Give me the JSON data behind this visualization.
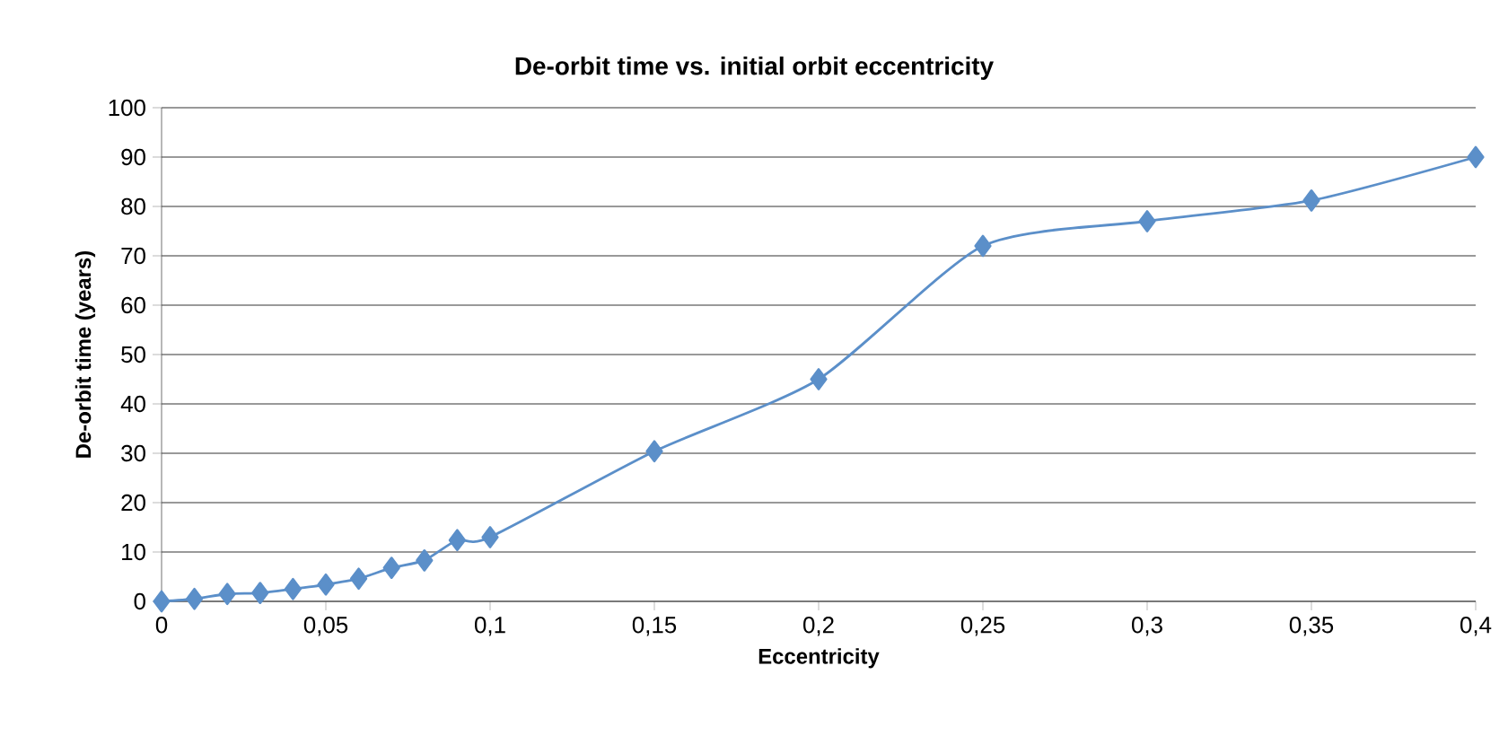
{
  "chart_data": {
    "type": "line",
    "title": "De-orbit time vs. initial orbit eccentricity",
    "xlabel": "Eccentricity",
    "ylabel": "De-orbit time (years)",
    "x": [
      0,
      0.01,
      0.02,
      0.03,
      0.04,
      0.05,
      0.06,
      0.07,
      0.08,
      0.09,
      0.1,
      0.15,
      0.2,
      0.25,
      0.3,
      0.35,
      0.4
    ],
    "series": [
      {
        "color": "#5b8fc9",
        "values": [
          0,
          0.5,
          1.5,
          1.7,
          2.5,
          3.4,
          4.6,
          6.8,
          8.3,
          12.4,
          13,
          30.4,
          45,
          72,
          77,
          81.2,
          90
        ]
      }
    ],
    "xlim": [
      0,
      0.4
    ],
    "xticks": [
      0,
      {
        "value": 0.05,
        "label": "0,05"
      },
      {
        "value": 0.1,
        "label": "0,1"
      },
      {
        "value": 0.15,
        "label": "0,15"
      },
      {
        "value": 0.2,
        "label": "0,2"
      },
      {
        "value": 0.25,
        "label": "0,25"
      },
      {
        "value": 0.3,
        "label": "0,3"
      },
      {
        "value": 0.35,
        "label": "0,35"
      },
      {
        "value": 0.4,
        "label": "0,4"
      }
    ],
    "ylim": [
      0,
      100
    ],
    "yticks": [
      0,
      10,
      20,
      30,
      40,
      50,
      60,
      70,
      80,
      90,
      100
    ],
    "grid": "y",
    "marker": "diamond",
    "line_style": "solid"
  }
}
